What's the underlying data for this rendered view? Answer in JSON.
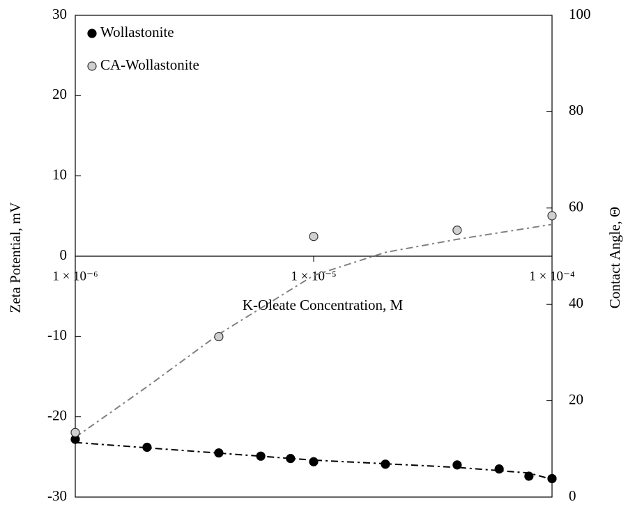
{
  "chart_data": {
    "type": "scatter",
    "xlabel": "K-Oleate Concentration, M",
    "ylabel": "Zeta Potential, mV",
    "y2label": "Contact Angle, Θ",
    "xscale": "log",
    "xlim": [
      1e-06,
      0.0001
    ],
    "xticks": [
      {
        "value": 1e-06,
        "label": "1 × 10⁻⁶"
      },
      {
        "value": 1e-05,
        "label": "1 × 10⁻⁵"
      },
      {
        "value": 0.0001,
        "label": "1 × 10⁻⁴"
      }
    ],
    "ylim": [
      -30,
      30
    ],
    "yticks": [
      -30,
      -20,
      -10,
      0,
      10,
      20,
      30
    ],
    "y2lim": [
      0,
      100
    ],
    "y2ticks": [
      0,
      20,
      40,
      60,
      80,
      100
    ],
    "legend": "top-left",
    "series": [
      {
        "name": "Wollastonite",
        "color": "#000000",
        "edge": "#000000",
        "x": [
          1e-06,
          2e-06,
          4e-06,
          6e-06,
          8e-06,
          1e-05,
          2e-05,
          4e-05,
          6e-05,
          8e-05,
          0.0001
        ],
        "values": [
          -22.8,
          -23.8,
          -24.5,
          -24.9,
          -25.2,
          -25.6,
          -25.9,
          -26.0,
          -26.5,
          -27.4,
          -27.7
        ]
      },
      {
        "name": "CA-Wollastonite",
        "color": "#d0d0d0",
        "edge": "#333333",
        "axis": "y2",
        "x": [
          1e-06,
          4e-06,
          1e-05,
          4e-05,
          0.0001
        ],
        "values": [
          13.4,
          33.3,
          54.1,
          55.4,
          58.4
        ]
      }
    ],
    "trendlines": [
      {
        "color": "#000000",
        "x": [
          1e-06,
          1e-05,
          4e-05,
          8e-05,
          0.0001
        ],
        "values": [
          -23.2,
          -25.4,
          -26.3,
          -27.0,
          -27.8
        ]
      },
      {
        "color": "#808080",
        "axis": "y2",
        "x": [
          1e-06,
          2e-06,
          4e-06,
          1e-05,
          2e-05,
          4e-05,
          0.0001
        ],
        "values": [
          12.4,
          22.9,
          33.8,
          46.0,
          50.8,
          53.5,
          56.6
        ]
      }
    ]
  }
}
